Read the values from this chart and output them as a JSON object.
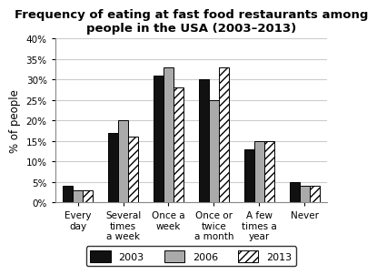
{
  "title": "Frequency of eating at fast food restaurants among\npeople in the USA (2003–2013)",
  "ylabel": "% of people",
  "categories": [
    "Every\nday",
    "Several\ntimes\na week",
    "Once a\nweek",
    "Once or\ntwice\na month",
    "A few\ntimes a\nyear",
    "Never"
  ],
  "series": {
    "2003": [
      4,
      17,
      31,
      30,
      13,
      5
    ],
    "2006": [
      3,
      20,
      33,
      25,
      15,
      4
    ],
    "2013": [
      3,
      16,
      28,
      33,
      15,
      4
    ]
  },
  "colors": {
    "2003": "#111111",
    "2006": "#aaaaaa",
    "2013": "#ffffff"
  },
  "hatch": {
    "2003": "",
    "2006": "",
    "2013": "////"
  },
  "ylim": [
    0,
    40
  ],
  "yticks": [
    0,
    5,
    10,
    15,
    20,
    25,
    30,
    35,
    40
  ],
  "ytick_labels": [
    "0%",
    "5%",
    "10%",
    "15%",
    "20%",
    "25%",
    "30%",
    "35%",
    "40%"
  ],
  "bar_width": 0.22,
  "legend_labels": [
    "2003",
    "2006",
    "2013"
  ],
  "background_color": "#ffffff",
  "grid_color": "#cccccc",
  "title_fontsize": 9.5,
  "axis_label_fontsize": 8.5,
  "tick_fontsize": 7.5
}
